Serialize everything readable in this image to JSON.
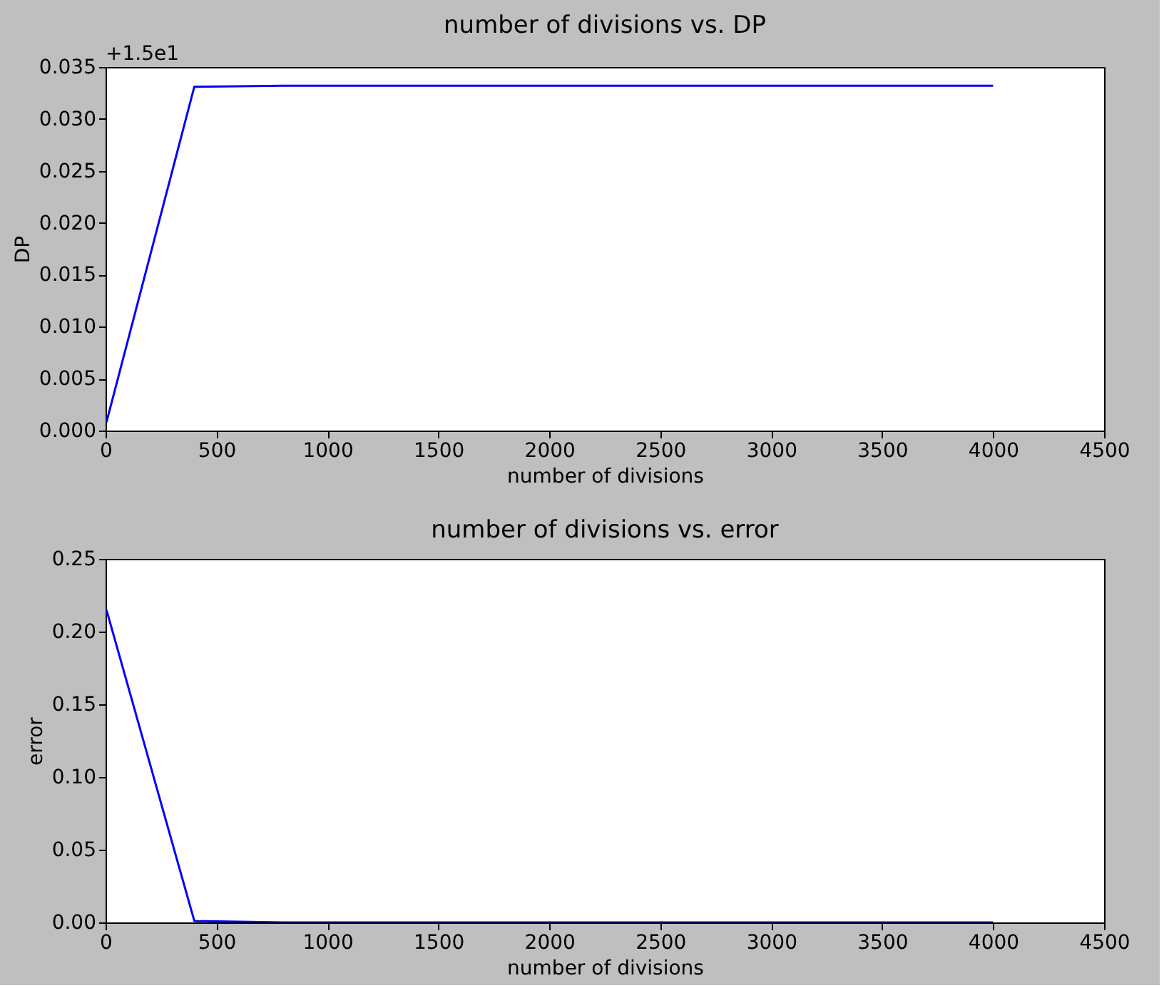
{
  "chart_data": [
    {
      "type": "line",
      "title": "number of divisions vs. DP",
      "xlabel": "number of divisions",
      "ylabel": "DP",
      "x": [
        4,
        400,
        800,
        1200,
        1600,
        2000,
        2400,
        2800,
        3200,
        3600,
        4000
      ],
      "series": [
        {
          "color": "#0000ff",
          "values": [
            0.0008,
            0.0331,
            0.0332,
            0.0332,
            0.0332,
            0.0332,
            0.0332,
            0.0332,
            0.0332,
            0.0332,
            0.0332
          ]
        }
      ],
      "xlim": [
        0,
        4500
      ],
      "xticks": [
        0,
        500,
        1000,
        1500,
        2000,
        2500,
        3000,
        3500,
        4000,
        4500
      ],
      "ylim": [
        0,
        0.035
      ],
      "yticks": [
        {
          "value": 0,
          "label": "0.000"
        },
        {
          "value": 0.005,
          "label": "0.005"
        },
        {
          "value": 0.01,
          "label": "0.010"
        },
        {
          "value": 0.015,
          "label": "0.015"
        },
        {
          "value": 0.02,
          "label": "0.020"
        },
        {
          "value": 0.025,
          "label": "0.025"
        },
        {
          "value": 0.03,
          "label": "0.030"
        },
        {
          "value": 0.035,
          "label": "0.035"
        }
      ],
      "grid": false,
      "annotations": [
        "+1.5e1"
      ]
    },
    {
      "type": "line",
      "title": "number of divisions vs. error",
      "xlabel": "number of divisions",
      "ylabel": "error",
      "x": [
        4,
        400,
        800,
        1200,
        1600,
        2000,
        2400,
        2800,
        3200,
        3600,
        4000
      ],
      "series": [
        {
          "color": "#0000ff",
          "values": [
            0.215,
            0.001,
            0,
            0,
            0,
            0,
            0,
            0,
            0,
            0,
            0
          ]
        }
      ],
      "xlim": [
        0,
        4500
      ],
      "xticks": [
        0,
        500,
        1000,
        1500,
        2000,
        2500,
        3000,
        3500,
        4000,
        4500
      ],
      "ylim": [
        0,
        0.25
      ],
      "yticks": [
        {
          "value": 0,
          "label": "0.00"
        },
        {
          "value": 0.05,
          "label": "0.05"
        },
        {
          "value": 0.1,
          "label": "0.10"
        },
        {
          "value": 0.15,
          "label": "0.15"
        },
        {
          "value": 0.2,
          "label": "0.20"
        },
        {
          "value": 0.25,
          "label": "0.25"
        }
      ],
      "grid": false
    }
  ]
}
